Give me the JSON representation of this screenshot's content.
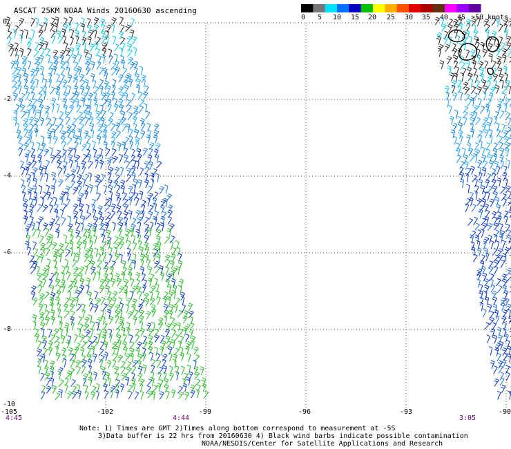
{
  "title": "ASCAT 25KM NOAA Winds 20160630 ascending",
  "legend": {
    "labels": [
      "0",
      "5",
      "10",
      "15",
      "20",
      "25",
      "30",
      "35",
      "40",
      "45",
      ">50 knots"
    ],
    "colors": [
      "#000000",
      "#777777",
      "#00e0ff",
      "#0070ff",
      "#0000c0",
      "#00c000",
      "#ffff00",
      "#ffb000",
      "#ff5000",
      "#e00000",
      "#aa0000",
      "#603010",
      "#ff00ff",
      "#a000ff",
      "#6000a0"
    ]
  },
  "y_axis_labels": [
    "0",
    "-2",
    "-4",
    "-6",
    "-8",
    "-10"
  ],
  "x_axis_labels": [
    "-105",
    "-102",
    "-99",
    "-96",
    "-93",
    "-90"
  ],
  "time_labels": [
    "4:45",
    "4:44",
    "3:05"
  ],
  "notes": [
    "Note: 1) Times are GMT 2)Times along bottom correspond to measurement at -5S",
    "3)Data buffer is 22 hrs from 20160630 4) Black wind barbs indicate possible contamination",
    "NOAA/NESDIS/Center for Satellite Applications and Research"
  ]
}
